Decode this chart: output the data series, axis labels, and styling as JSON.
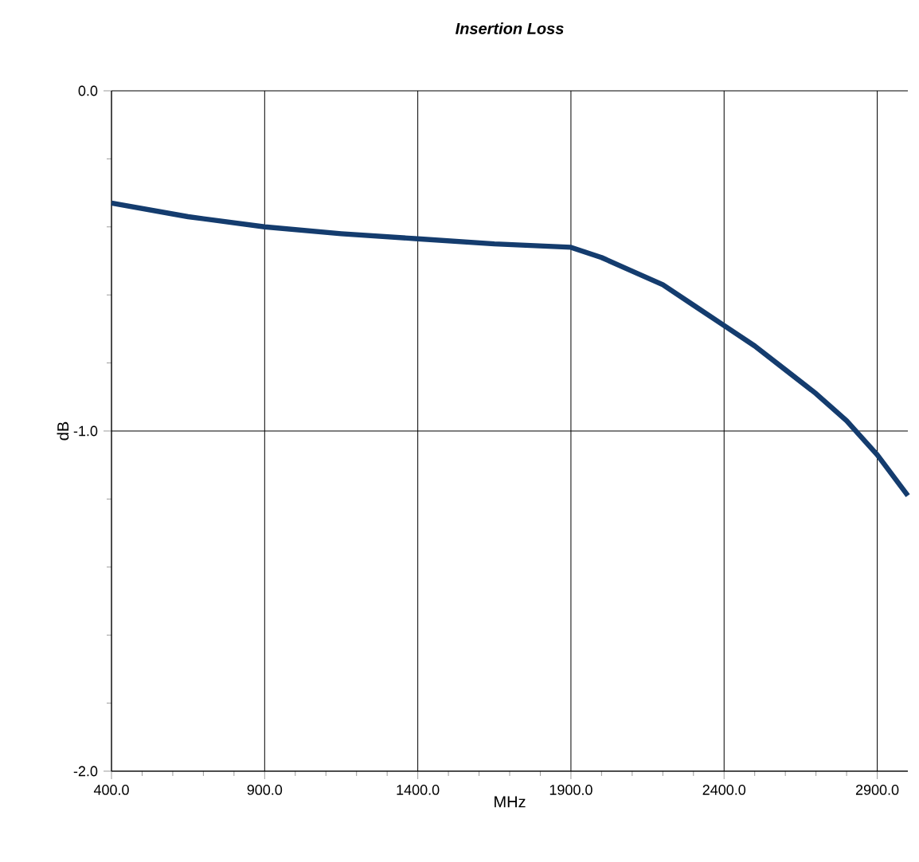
{
  "chart_data": {
    "type": "line",
    "title": "Insertion Loss",
    "xlabel": "MHz",
    "ylabel": "dB",
    "x": [
      400,
      650,
      900,
      1150,
      1400,
      1650,
      1900,
      2000,
      2100,
      2200,
      2300,
      2400,
      2500,
      2600,
      2700,
      2800,
      2900,
      3000
    ],
    "series": [
      {
        "color": "#143c6e",
        "values": [
          -0.33,
          -0.37,
          -0.4,
          -0.42,
          -0.435,
          -0.45,
          -0.46,
          -0.49,
          -0.53,
          -0.57,
          -0.63,
          -0.69,
          -0.75,
          -0.82,
          -0.89,
          -0.97,
          -1.07,
          -1.19
        ]
      }
    ],
    "xlim": [
      400,
      3000
    ],
    "ylim": [
      -2,
      0
    ],
    "xticks": [
      {
        "value": 400,
        "label": "400.0"
      },
      {
        "value": 900,
        "label": "900.0"
      },
      {
        "value": 1400,
        "label": "1400.0"
      },
      {
        "value": 1900,
        "label": "1900.0"
      },
      {
        "value": 2400,
        "label": "2400.0"
      },
      {
        "value": 2900,
        "label": "2900.0"
      }
    ],
    "yticks": [
      {
        "value": -2,
        "label": "-2.0"
      },
      {
        "value": -1,
        "label": "-1.0"
      },
      {
        "value": 0,
        "label": "0.0"
      }
    ],
    "grid": true,
    "marker": "none",
    "line_style": "solid"
  }
}
